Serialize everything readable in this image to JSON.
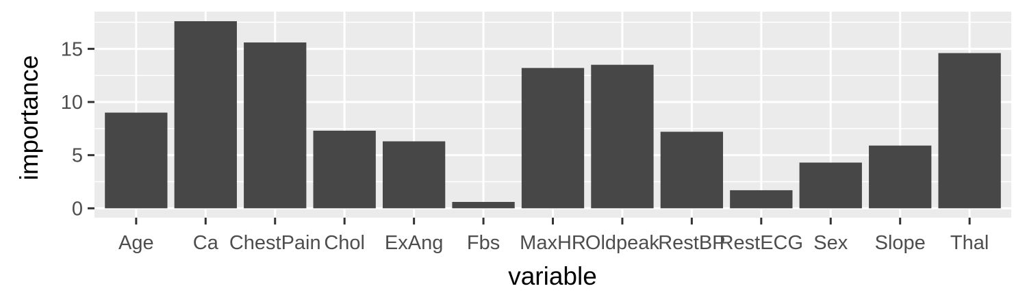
{
  "colors": {
    "panel_background": "#ebebeb",
    "grid_line": "#ffffff",
    "bar_fill": "#474747",
    "tick_mark": "#333333",
    "tick_text": "#4d4d4d",
    "axis_title_text": "#000000"
  },
  "chart_data": {
    "type": "bar",
    "title": "",
    "xlabel": "variable",
    "ylabel": "importance",
    "categories": [
      "Age",
      "Ca",
      "ChestPain",
      "Chol",
      "ExAng",
      "Fbs",
      "MaxHR",
      "Oldpeak",
      "RestBP",
      "RestECG",
      "Sex",
      "Slope",
      "Thal"
    ],
    "values": [
      9.0,
      17.6,
      15.6,
      7.3,
      6.3,
      0.6,
      13.2,
      13.5,
      7.2,
      1.7,
      4.3,
      5.9,
      14.6
    ],
    "ylim": [
      -0.88,
      18.5
    ],
    "yticks": [
      0,
      5,
      10,
      15
    ],
    "ytick_labels": [
      "0",
      "5",
      "10",
      "15"
    ],
    "grid": true,
    "legend": "none"
  }
}
